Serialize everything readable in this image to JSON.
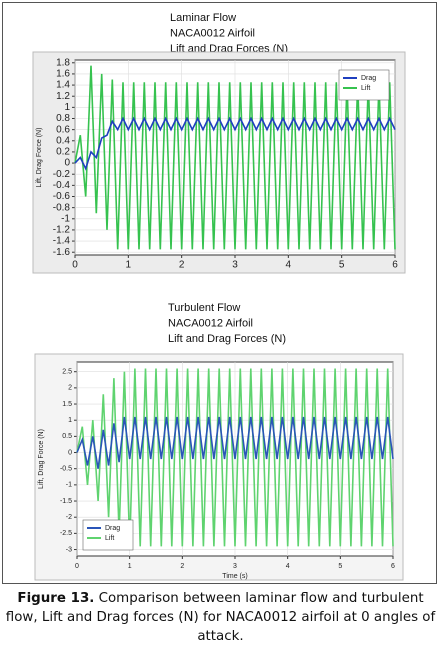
{
  "chart_data": [
    {
      "type": "line",
      "title": [
        "Laminar Flow",
        "NACA0012 Airfoil",
        "Lift and Drag Forces (N)"
      ],
      "ylabel": "Lift, Drag Force (N)",
      "x": [
        0,
        0.1,
        0.2,
        0.3,
        0.4,
        0.5,
        0.6,
        0.7,
        0.8,
        0.9,
        1,
        1.1,
        1.2,
        1.3,
        1.4,
        1.5,
        1.6,
        1.7,
        1.8,
        1.9,
        2,
        2.1,
        2.2,
        2.3,
        2.4,
        2.5,
        2.6,
        2.7,
        2.8,
        2.9,
        3,
        3.1,
        3.2,
        3.3,
        3.4,
        3.5,
        3.6,
        3.7,
        3.8,
        3.9,
        4,
        4.1,
        4.2,
        4.3,
        4.4,
        4.5,
        4.6,
        4.7,
        4.8,
        4.9,
        5,
        5.1,
        5.2,
        5.3,
        5.4,
        5.5,
        5.6,
        5.7,
        5.8,
        5.9,
        6
      ],
      "series": [
        {
          "name": "Drag",
          "color": "#1f3fbf",
          "values": [
            0,
            0.1,
            -0.1,
            0.2,
            0.1,
            0.45,
            0.5,
            0.75,
            0.6,
            0.8,
            0.6,
            0.8,
            0.6,
            0.8,
            0.6,
            0.8,
            0.6,
            0.8,
            0.6,
            0.8,
            0.6,
            0.8,
            0.6,
            0.8,
            0.6,
            0.8,
            0.6,
            0.8,
            0.6,
            0.8,
            0.6,
            0.8,
            0.6,
            0.8,
            0.6,
            0.8,
            0.6,
            0.8,
            0.6,
            0.8,
            0.6,
            0.8,
            0.6,
            0.8,
            0.6,
            0.8,
            0.6,
            0.8,
            0.6,
            0.8,
            0.6,
            0.8,
            0.6,
            0.8,
            0.6,
            0.8,
            0.6,
            0.8,
            0.6,
            0.8,
            0.6
          ]
        },
        {
          "name": "Lift",
          "color": "#36c24f",
          "values": [
            0,
            0.5,
            -0.6,
            1.75,
            -0.9,
            1.6,
            -1.2,
            1.5,
            -1.55,
            1.45,
            -1.55,
            1.45,
            -1.55,
            1.45,
            -1.55,
            1.45,
            -1.55,
            1.45,
            -1.55,
            1.45,
            -1.55,
            1.45,
            -1.55,
            1.45,
            -1.55,
            1.45,
            -1.55,
            1.45,
            -1.55,
            1.45,
            -1.55,
            1.45,
            -1.55,
            1.45,
            -1.55,
            1.45,
            -1.55,
            1.45,
            -1.55,
            1.45,
            -1.55,
            1.45,
            -1.55,
            1.45,
            -1.55,
            1.45,
            -1.55,
            1.45,
            -1.55,
            1.45,
            -1.55,
            1.45,
            -1.55,
            1.45,
            -1.55,
            1.45,
            -1.55,
            1.45,
            -1.55,
            1.45,
            -1.55
          ]
        }
      ],
      "xlim": [
        0,
        6
      ],
      "xticks": [
        0,
        1,
        2,
        3,
        4,
        5,
        6
      ],
      "ylim": [
        -1.65,
        1.85
      ],
      "yticks": [
        -1.6,
        -1.4,
        -1.2,
        -1,
        -0.8,
        -0.6,
        -0.4,
        -0.2,
        0,
        0.2,
        0.4,
        0.6,
        0.8,
        1,
        1.2,
        1.4,
        1.6,
        1.8
      ],
      "grid": true,
      "legend": "top-right"
    },
    {
      "type": "line",
      "title": [
        "Turbulent Flow",
        "NACA0012 Airfoil",
        "Lift and Drag Forces (N)"
      ],
      "ylabel": "Lift, Drag Force (N)",
      "xlabel": "Time (s)",
      "x": [
        0,
        0.1,
        0.2,
        0.3,
        0.4,
        0.5,
        0.6,
        0.7,
        0.8,
        0.9,
        1,
        1.1,
        1.2,
        1.3,
        1.4,
        1.5,
        1.6,
        1.7,
        1.8,
        1.9,
        2,
        2.1,
        2.2,
        2.3,
        2.4,
        2.5,
        2.6,
        2.7,
        2.8,
        2.9,
        3,
        3.1,
        3.2,
        3.3,
        3.4,
        3.5,
        3.6,
        3.7,
        3.8,
        3.9,
        4,
        4.1,
        4.2,
        4.3,
        4.4,
        4.5,
        4.6,
        4.7,
        4.8,
        4.9,
        5,
        5.1,
        5.2,
        5.3,
        5.4,
        5.5,
        5.6,
        5.7,
        5.8,
        5.9,
        6
      ],
      "series": [
        {
          "name": "Drag",
          "color": "#2a55b8",
          "values": [
            0,
            0.4,
            -0.4,
            0.5,
            -0.5,
            0.7,
            -0.4,
            0.9,
            -0.3,
            1.1,
            -0.2,
            1.1,
            -0.2,
            1.1,
            -0.2,
            1.1,
            -0.2,
            1.1,
            -0.2,
            1.1,
            -0.2,
            1.1,
            -0.2,
            1.1,
            -0.2,
            1.1,
            -0.2,
            1.1,
            -0.2,
            1.1,
            -0.2,
            1.1,
            -0.2,
            1.1,
            -0.2,
            1.1,
            -0.2,
            1.1,
            -0.2,
            1.1,
            -0.2,
            1.1,
            -0.2,
            1.1,
            -0.2,
            1.1,
            -0.2,
            1.1,
            -0.2,
            1.1,
            -0.2,
            1.1,
            -0.2,
            1.1,
            -0.2,
            1.1,
            -0.2,
            1.1,
            -0.2,
            1.1,
            -0.2
          ]
        },
        {
          "name": "Lift",
          "color": "#5fd36f",
          "values": [
            0,
            0.8,
            -1,
            1,
            -1.5,
            1.8,
            -2,
            2.3,
            -2.5,
            2.5,
            -2.9,
            2.6,
            -2.9,
            2.6,
            -2.9,
            2.6,
            -2.9,
            2.6,
            -2.9,
            2.6,
            -2.9,
            2.6,
            -2.9,
            2.6,
            -2.9,
            2.6,
            -2.9,
            2.6,
            -2.9,
            2.6,
            -2.9,
            2.6,
            -2.9,
            2.6,
            -2.9,
            2.6,
            -2.9,
            2.6,
            -2.9,
            2.6,
            -2.9,
            2.6,
            -2.9,
            2.6,
            -2.9,
            2.6,
            -2.9,
            2.6,
            -2.9,
            2.6,
            -2.9,
            2.6,
            -2.9,
            2.6,
            -2.9,
            2.6,
            -2.9,
            2.6,
            -2.9,
            2.6,
            -2.9
          ]
        }
      ],
      "xlim": [
        0,
        6
      ],
      "xticks": [
        0,
        1,
        2,
        3,
        4,
        5,
        6
      ],
      "ylim": [
        -3.2,
        2.8
      ],
      "yticks": [
        -3,
        -2.5,
        -2,
        -1.5,
        -1,
        -0.5,
        0,
        0.5,
        1,
        1.5,
        2,
        2.5
      ],
      "grid": true,
      "legend": "bottom-left"
    }
  ],
  "caption": {
    "label": "Figure 13.",
    "text": "Comparison between laminar flow and turbulent flow, Lift and Drag forces (N) for NACA0012 airfoil at 0 angles of attack."
  }
}
